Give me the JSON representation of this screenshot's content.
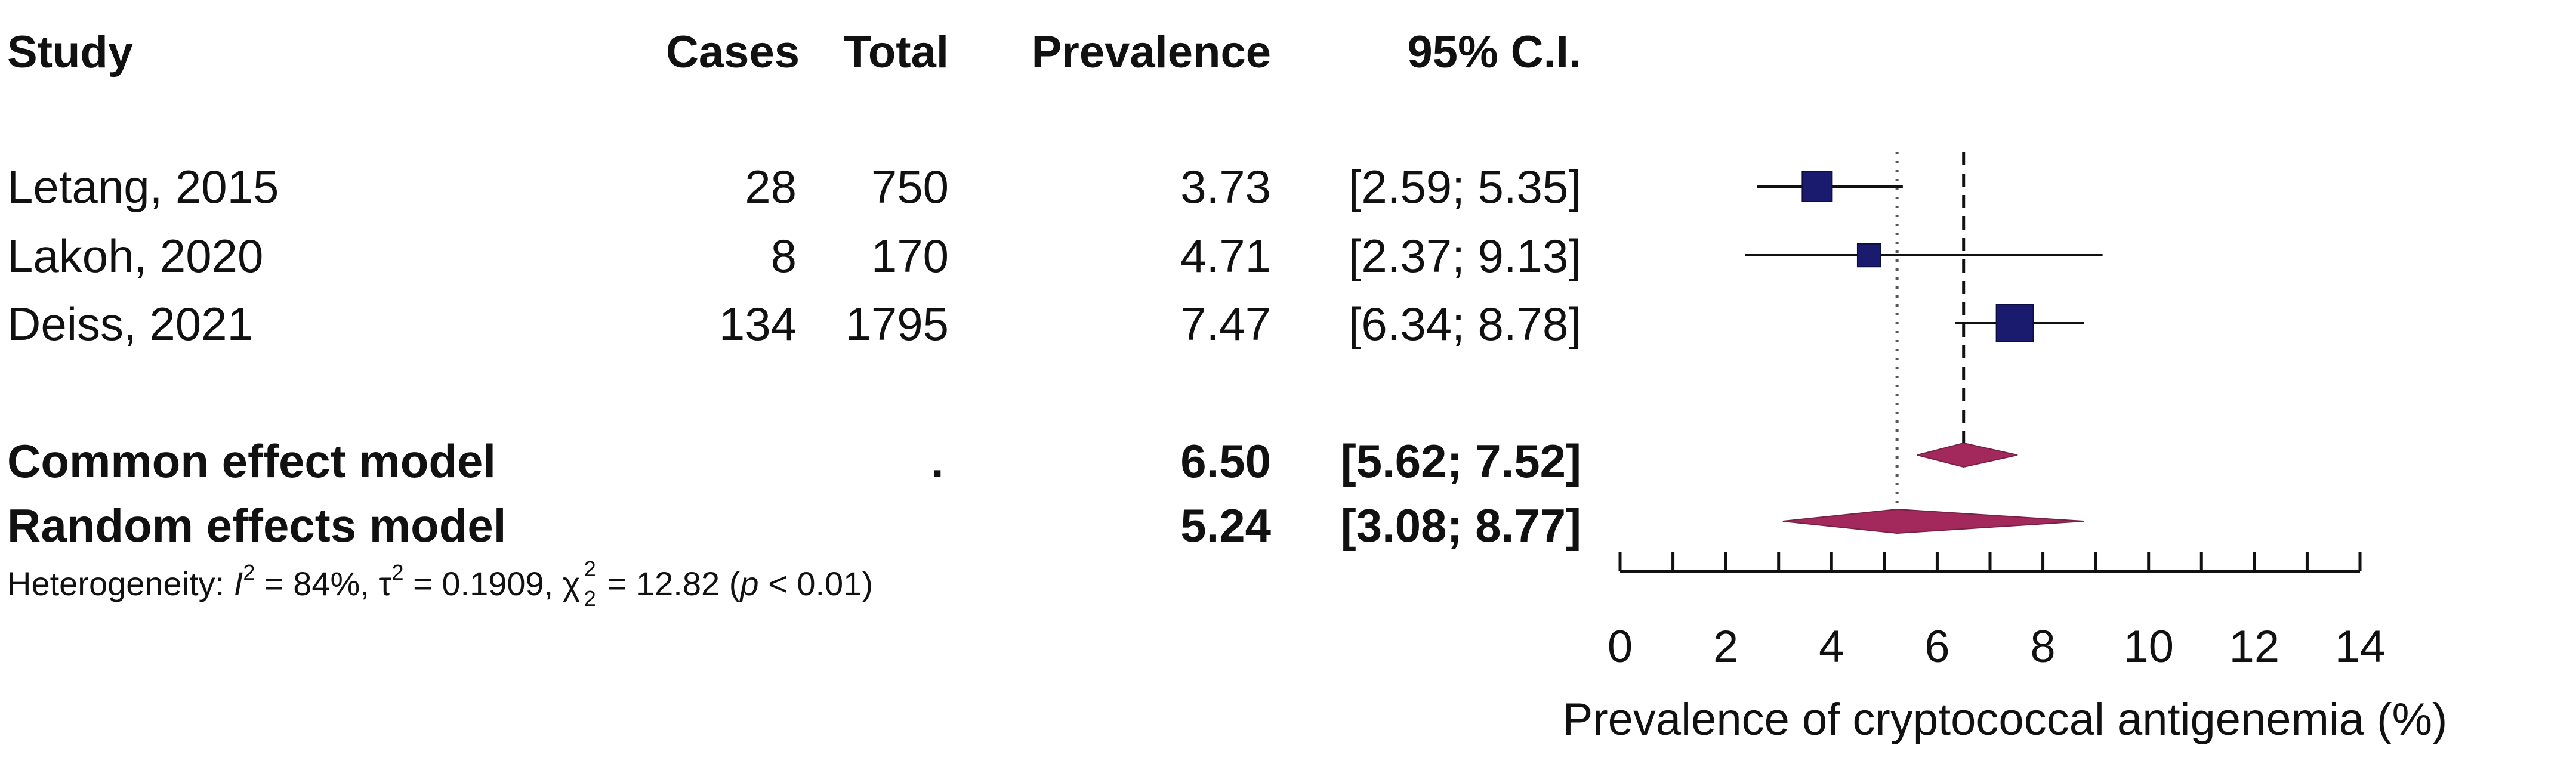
{
  "table": {
    "headers": {
      "study": "Study",
      "cases": "Cases",
      "total": "Total",
      "prevalence": "Prevalence",
      "ci": "95% C.I."
    },
    "rows": [
      {
        "study": "Letang, 2015",
        "cases": "28",
        "total": "750",
        "prevalence": "3.73",
        "ci": "[2.59; 5.35]"
      },
      {
        "study": "Lakoh, 2020",
        "cases": "8",
        "total": "170",
        "prevalence": "4.71",
        "ci": "[2.37; 9.13]"
      },
      {
        "study": "Deiss, 2021",
        "cases": "134",
        "total": "1795",
        "prevalence": "7.47",
        "ci": "[6.34; 8.78]"
      }
    ],
    "models": [
      {
        "label": "Common effect model",
        "dot": ".",
        "prevalence": "6.50",
        "ci": "[5.62; 7.52]"
      },
      {
        "label": "Random effects model",
        "dot": "",
        "prevalence": "5.24",
        "ci": "[3.08; 8.77]"
      }
    ],
    "heterogeneity": {
      "prefix": "Heterogeneity: ",
      "i2_symbol": "I",
      "i2_value": " = 84%, ",
      "tau2": "τ",
      "tau2_value": " = 0.1909, ",
      "chi": "χ",
      "chi_sub": "2",
      "chi_value": " = 12.82 (",
      "p": "p",
      "p_value": " < 0.01)"
    }
  },
  "chart_data": {
    "type": "forest",
    "xlabel": "Prevalence of cryptococcal antigenemia (%)",
    "xlim": [
      0,
      14
    ],
    "xticks": [
      0,
      2,
      4,
      6,
      8,
      10,
      12,
      14
    ],
    "studies": [
      {
        "name": "Letang, 2015",
        "estimate": 3.73,
        "lower": 2.59,
        "upper": 5.35,
        "weight": 750
      },
      {
        "name": "Lakoh, 2020",
        "estimate": 4.71,
        "lower": 2.37,
        "upper": 9.13,
        "weight": 170
      },
      {
        "name": "Deiss, 2021",
        "estimate": 7.47,
        "lower": 6.34,
        "upper": 8.78,
        "weight": 1795
      }
    ],
    "common_effect": {
      "estimate": 6.5,
      "lower": 5.62,
      "upper": 7.52
    },
    "random_effects": {
      "estimate": 5.24,
      "lower": 3.08,
      "upper": 8.77
    },
    "colors": {
      "square": "#1a1a6e",
      "diamond": "#a3295c",
      "line": "#111111"
    }
  }
}
